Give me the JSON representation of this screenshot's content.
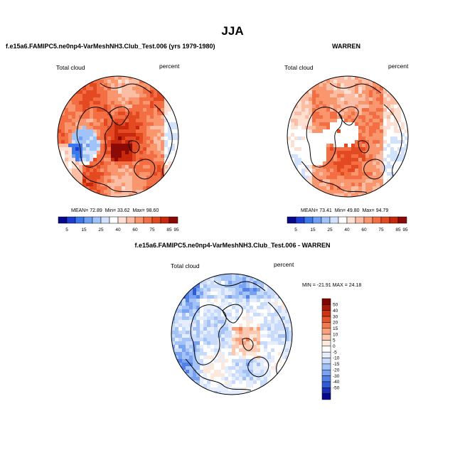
{
  "page": {
    "title": "JJA",
    "diff_title": "f.e15a6.FAMIPC5.ne0np4-VarMeshNH3.Club_Test.006 - WARREN"
  },
  "colors": {
    "abs_levels": [
      "#08088c",
      "#1e3cd2",
      "#3c78eb",
      "#6ea0f5",
      "#a0c3fa",
      "#d2e1fc",
      "#ffffff",
      "#fde0d2",
      "#fcbda5",
      "#f9966e",
      "#f46e44",
      "#e34a22",
      "#c8280c",
      "#8c0a05"
    ],
    "diff_levels": [
      "#08088c",
      "#1b2fb4",
      "#2f5bd6",
      "#5282e8",
      "#79a3f2",
      "#a3c2f8",
      "#c9dbfb",
      "#e6eefd",
      "#ffffff",
      "#fde8dc",
      "#fcc9b0",
      "#f9a07c",
      "#f27a50",
      "#e4552c",
      "#cc3412",
      "#a61a08",
      "#800604"
    ],
    "land": "#000000",
    "missing": "#ffffff"
  },
  "chart_data": [
    {
      "type": "heatmap",
      "projection": "polar-stereographic",
      "title": "f.e15a6.FAMIPC5.ne0np4-VarMeshNH3.Club_Test.006 (yrs 1979-1980)",
      "left_label": "Total cloud",
      "right_label": "percent",
      "stats": {
        "mean_label": "MEAN=",
        "mean": "72.89",
        "min_label": "Min=",
        "min": "33.62",
        "max_label": "Max=",
        "max": "98.60"
      },
      "colorbar": {
        "orientation": "horizontal",
        "levels": [
          5,
          15,
          25,
          40,
          60,
          75,
          85,
          95
        ]
      }
    },
    {
      "type": "heatmap",
      "projection": "polar-stereographic",
      "title": "WARREN",
      "left_label": "Total cloud",
      "right_label": "percent",
      "stats": {
        "mean_label": "MEAN=",
        "mean": "73.41",
        "min_label": "Min=",
        "min": "49.80",
        "max_label": "Max=",
        "max": "94.79"
      },
      "colorbar": {
        "orientation": "horizontal",
        "levels": [
          5,
          15,
          25,
          40,
          60,
          75,
          85,
          95
        ]
      }
    },
    {
      "type": "heatmap",
      "projection": "polar-stereographic",
      "title": "f.e15a6.FAMIPC5.ne0np4-VarMeshNH3.Club_Test.006 - WARREN",
      "left_label": "Total cloud",
      "right_label": "percent",
      "stats_text": "MIN = -21.91 MAX =  24.18",
      "colorbar": {
        "orientation": "vertical",
        "levels": [
          50,
          40,
          30,
          20,
          15,
          10,
          5,
          0,
          -5,
          -10,
          -15,
          -20,
          -30,
          -40,
          -50
        ]
      }
    }
  ]
}
